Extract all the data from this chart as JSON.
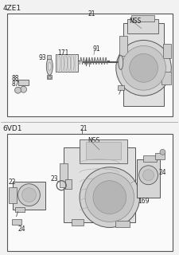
{
  "bg_color": "#f2f2f2",
  "box_fill": "#ffffff",
  "line_color": "#555555",
  "dark_line": "#333333",
  "part_fill": "#d8d8d8",
  "part_fill2": "#e8e8e8",
  "text_color": "#222222",
  "title1": "4ZE1",
  "title2": "6VD1",
  "fs_title": 6.5,
  "fs_label": 5.5,
  "fs_small": 5.0
}
